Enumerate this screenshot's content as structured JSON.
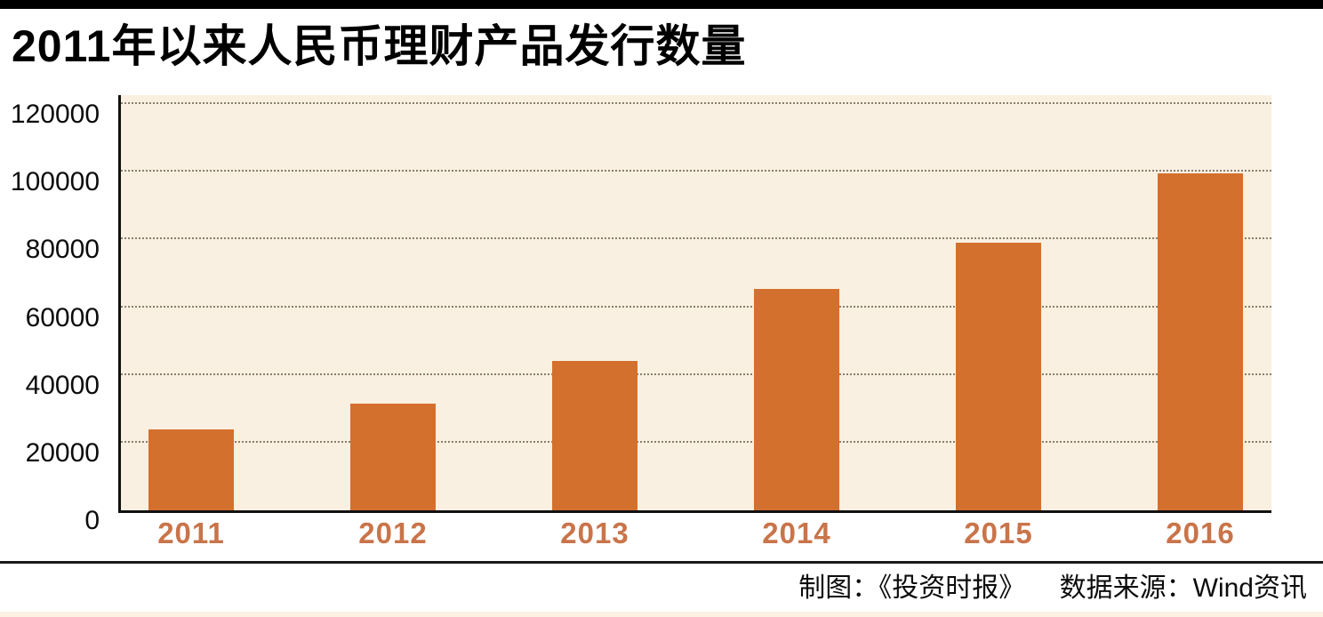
{
  "page": {
    "title": "2011年以来人民币理财产品发行数量",
    "footer": {
      "credit": "制图：《投资时报》",
      "source": "数据来源：Wind资讯"
    }
  },
  "colors": {
    "top_bar": "#000000",
    "bar": "#d4702d",
    "plot_bg": "#faf0e1",
    "gridline": "#8b7d6b",
    "axis": "#111111",
    "x_label": "#c9744a",
    "divider": "#1a1a1a",
    "bottom_strip": "#fbf2e4"
  },
  "chart_data": {
    "type": "bar",
    "title": "2011年以来人民币理财产品发行数量",
    "categories": [
      "2011",
      "2012",
      "2013",
      "2014",
      "2015",
      "2016"
    ],
    "values": [
      24000,
      31500,
      44000,
      65500,
      79000,
      99500
    ],
    "xlabel": "",
    "ylabel": "",
    "ylim": [
      0,
      120000
    ],
    "yticks": [
      120000,
      100000,
      80000,
      60000,
      40000,
      20000,
      0
    ],
    "grid": "horizontal-dotted",
    "legend": "none",
    "bar_color": "#d4702d",
    "source_note": "数据来源：Wind资讯",
    "credit_note": "制图：《投资时报》"
  }
}
